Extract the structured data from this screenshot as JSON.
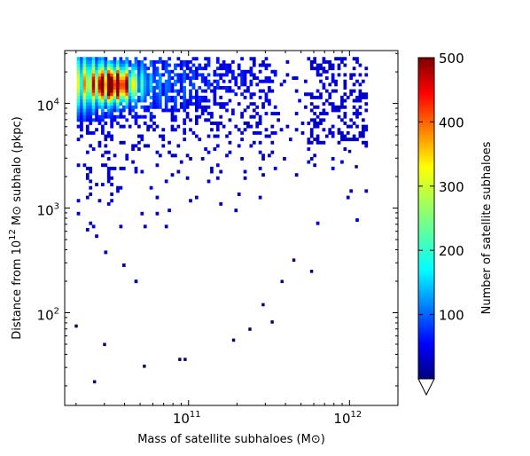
{
  "chart_data": {
    "type": "heatmap",
    "title": "",
    "x_scale": "log",
    "y_scale": "log",
    "x_range": [
      17000000000.0,
      2000000000000.0
    ],
    "y_range": [
      13,
      32000
    ],
    "x_ticks": [
      {
        "value": 100000000000.0,
        "base": "10",
        "exp": "11"
      },
      {
        "value": 1000000000000.0,
        "base": "10",
        "exp": "12"
      }
    ],
    "y_ticks": [
      {
        "value": 100,
        "base": "10",
        "exp": "2"
      },
      {
        "value": 1000,
        "base": "10",
        "exp": "3"
      },
      {
        "value": 10000,
        "base": "10",
        "exp": "4"
      }
    ],
    "xlabel": "Mass of satellite subhaloes (M⊙)",
    "ylabel": "Distance from 10^12 M⊙ subhalo (pkpc)",
    "ylabel_parts": {
      "pre": "Distance from 10",
      "exp": "12",
      "post": " M⊙ subhalo (pkpc)"
    },
    "colorbar": {
      "label": "Number of satellite subhaloes",
      "min": 0,
      "max": 500,
      "ticks": [
        100,
        200,
        300,
        400,
        500
      ],
      "extend": "min",
      "colormap": "jet"
    },
    "density_summary": {
      "description_of_cells": "2D histogram of satellite mass vs distance; counts shown by colour",
      "dense_core": {
        "x_range": [
          20000000000.0,
          350000000000.0
        ],
        "y_range": [
          3000,
          27000
        ],
        "peak_count": 500,
        "peak_location": {
          "x": 34000000000.0,
          "y": 15000
        }
      },
      "sparse_scatter_points": [
        {
          "x": 26000000000.0,
          "y": 22
        },
        {
          "x": 53000000000.0,
          "y": 31
        },
        {
          "x": 88000000000.0,
          "y": 36
        },
        {
          "x": 95000000000.0,
          "y": 36
        },
        {
          "x": 30000000000.0,
          "y": 50
        },
        {
          "x": 190000000000.0,
          "y": 55
        },
        {
          "x": 20000000000.0,
          "y": 75
        },
        {
          "x": 240000000000.0,
          "y": 70
        },
        {
          "x": 330000000000.0,
          "y": 82
        },
        {
          "x": 290000000000.0,
          "y": 120
        },
        {
          "x": 380000000000.0,
          "y": 200
        },
        {
          "x": 580000000000.0,
          "y": 250
        },
        {
          "x": 450000000000.0,
          "y": 320
        },
        {
          "x": 1000000000000.0,
          "y": 3500
        },
        {
          "x": 1100000000000.0,
          "y": 2500
        }
      ]
    }
  }
}
